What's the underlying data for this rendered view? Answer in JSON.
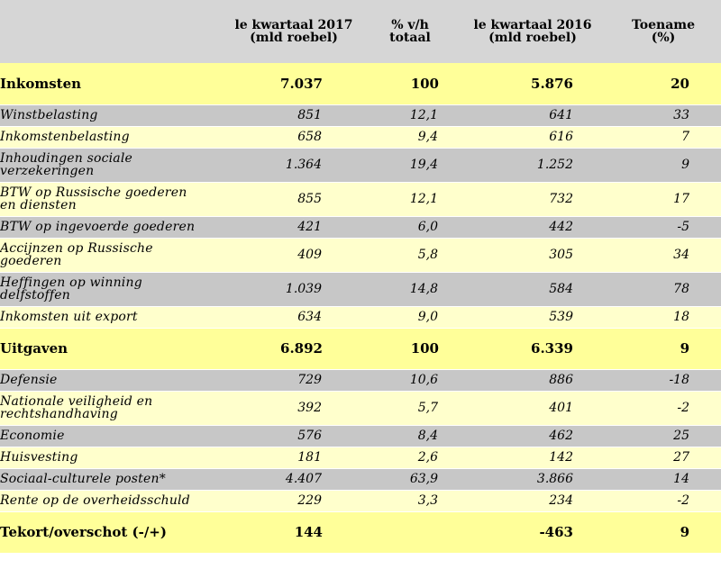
{
  "header": {
    "col_label": "",
    "col_q1_2017": "le kwartaal 2017 (mld roebel)",
    "col_q1_2017_line1": "le kwartaal 2017",
    "col_q1_2017_line2": "(mld roebel)",
    "col_share_line1": "% v/h",
    "col_share_line2": "totaal",
    "col_q1_2016_line1": "le kwartaal 2016",
    "col_q1_2016_line2": "(mld roebel)",
    "col_growth_line1": "Toename",
    "col_growth_line2": "(%)"
  },
  "rows": [
    {
      "type": "section",
      "label": "Inkomsten",
      "q2017": "7.037",
      "share": "100",
      "q2016": "5.876",
      "growth": "20",
      "height": 46
    },
    {
      "type": "item",
      "shade": "gray",
      "label": "Winstbelasting",
      "q2017": "851",
      "share": "12,1",
      "q2016": "641",
      "growth": "33",
      "height": 24
    },
    {
      "type": "item",
      "shade": "yellow",
      "label": "Inkomstenbelasting",
      "q2017": "658",
      "share": "9,4",
      "q2016": "616",
      "growth": "7",
      "height": 24
    },
    {
      "type": "item",
      "shade": "gray",
      "label": "Inhoudingen sociale verzekeringen",
      "label_lines": [
        "Inhoudingen sociale",
        "verzekeringen"
      ],
      "q2017": "1.364",
      "share": "19,4",
      "q2016": "1.252",
      "growth": "9",
      "height": 38
    },
    {
      "type": "item",
      "shade": "yellow",
      "label": "BTW op Russische goederen en diensten",
      "label_lines": [
        "BTW op Russische goederen",
        "en diensten"
      ],
      "q2017": "855",
      "share": "12,1",
      "q2016": "732",
      "growth": "17",
      "height": 38
    },
    {
      "type": "item",
      "shade": "gray",
      "label": "BTW op ingevoerde goederen",
      "q2017": "421",
      "share": "6,0",
      "q2016": "442",
      "growth": "-5",
      "height": 24
    },
    {
      "type": "item",
      "shade": "yellow",
      "label": "Accijnzen op Russische goederen",
      "label_lines": [
        "Accijnzen op Russische",
        "goederen"
      ],
      "q2017": "409",
      "share": "5,8",
      "q2016": "305",
      "growth": "34",
      "height": 38
    },
    {
      "type": "item",
      "shade": "gray",
      "label": "Heffingen op winning delfstoffen",
      "label_lines": [
        "Heffingen op winning",
        "delfstoffen"
      ],
      "q2017": "1.039",
      "share": "14,8",
      "q2016": "584",
      "growth": "78",
      "height": 38
    },
    {
      "type": "item",
      "shade": "yellow",
      "label": "Inkomsten uit export",
      "q2017": "634",
      "share": "9,0",
      "q2016": "539",
      "growth": "18",
      "height": 24
    },
    {
      "type": "section",
      "label": "Uitgaven",
      "q2017": "6.892",
      "share": "100",
      "q2016": "6.339",
      "growth": "9",
      "height": 46
    },
    {
      "type": "item",
      "shade": "gray",
      "label": "Defensie",
      "q2017": "729",
      "share": "10,6",
      "q2016": "886",
      "growth": "-18",
      "height": 24
    },
    {
      "type": "item",
      "shade": "yellow",
      "label": "Nationale veiligheid en rechtshandhaving",
      "label_lines": [
        "Nationale veiligheid en",
        "rechtshandhaving"
      ],
      "q2017": "392",
      "share": "5,7",
      "q2016": "401",
      "growth": "-2",
      "height": 38
    },
    {
      "type": "item",
      "shade": "gray",
      "label": "Economie",
      "q2017": "576",
      "share": "8,4",
      "q2016": "462",
      "growth": "25",
      "height": 24
    },
    {
      "type": "item",
      "shade": "yellow",
      "label": "Huisvesting",
      "q2017": "181",
      "share": "2,6",
      "q2016": "142",
      "growth": "27",
      "height": 24
    },
    {
      "type": "item",
      "shade": "gray",
      "label": "Sociaal-culturele posten*",
      "q2017": "4.407",
      "share": "63,9",
      "q2016": "3.866",
      "growth": "14",
      "height": 24
    },
    {
      "type": "item",
      "shade": "yellow",
      "label": "Rente op de overheidsschuld",
      "q2017": "229",
      "share": "3,3",
      "q2016": "234",
      "growth": "-2",
      "height": 24
    },
    {
      "type": "section",
      "label": "Tekort/overschot (-/+)",
      "q2017": "144",
      "share": "",
      "q2016": "-463",
      "growth": "9",
      "height": 46
    }
  ]
}
